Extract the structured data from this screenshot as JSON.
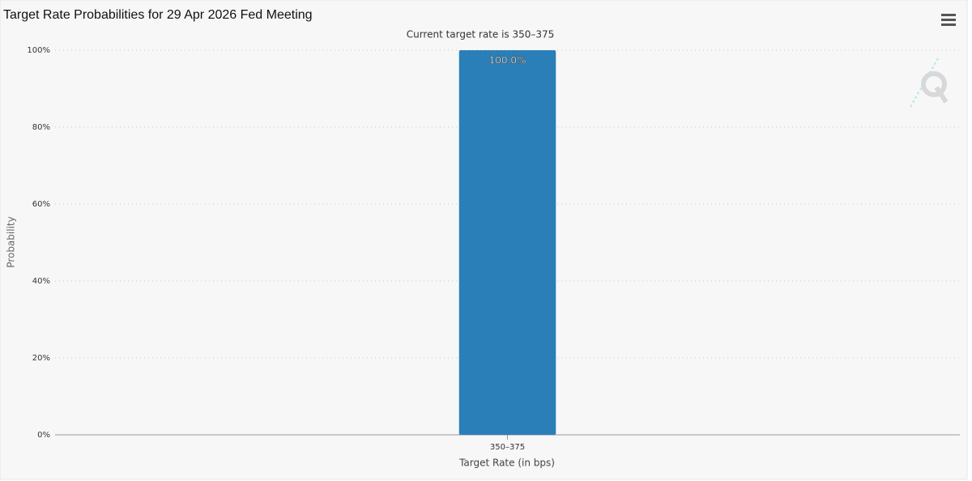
{
  "chart_data": {
    "type": "bar",
    "title": "Target Rate Probabilities for 29 Apr 2026 Fed Meeting",
    "subtitle": "Current target rate is 350–375",
    "categories": [
      "350–375"
    ],
    "values": [
      100
    ],
    "value_labels": [
      "100.0%"
    ],
    "color": "#2a7fb8",
    "xlabel": "Target Rate (in bps)",
    "ylabel": "Probability",
    "ylim": [
      0,
      100
    ],
    "yticks": [
      {
        "value": 0,
        "label": "0%"
      },
      {
        "value": 20,
        "label": "20%"
      },
      {
        "value": 40,
        "label": "40%"
      },
      {
        "value": 60,
        "label": "60%"
      },
      {
        "value": 80,
        "label": "80%"
      },
      {
        "value": 100,
        "label": "100%"
      }
    ],
    "grid": true
  }
}
